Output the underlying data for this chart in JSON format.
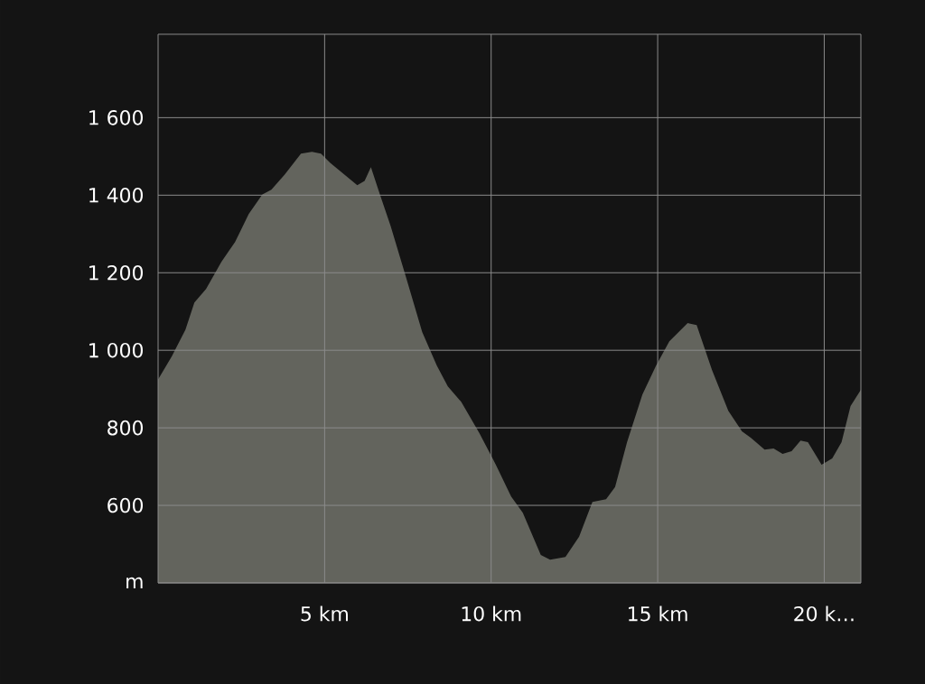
{
  "chart_data": {
    "type": "area",
    "color": "#63645d",
    "x": [
      0,
      0.41,
      0.82,
      1.09,
      1.44,
      1.9,
      2.31,
      2.72,
      3.13,
      3.4,
      3.8,
      4.29,
      4.62,
      4.89,
      5.16,
      5.98,
      6.2,
      6.39,
      6.66,
      6.98,
      7.47,
      7.93,
      8.37,
      8.7,
      9.1,
      9.65,
      10.14,
      10.6,
      10.95,
      11.49,
      11.77,
      12.23,
      12.64,
      13.04,
      13.45,
      13.72,
      14.08,
      14.54,
      14.95,
      15.35,
      15.9,
      16.17,
      16.63,
      17.12,
      17.53,
      17.8,
      18.21,
      18.48,
      18.75,
      19.02,
      19.29,
      19.51,
      19.92,
      20.24,
      20.52,
      20.79,
      21.1
    ],
    "values": [
      925,
      984,
      1053,
      1123,
      1158,
      1228,
      1279,
      1351,
      1402,
      1414,
      1453,
      1507,
      1512,
      1507,
      1484,
      1426,
      1437,
      1472,
      1402,
      1321,
      1181,
      1047,
      960,
      907,
      867,
      786,
      705,
      623,
      581,
      472,
      460,
      467,
      519,
      609,
      616,
      647,
      763,
      886,
      960,
      1023,
      1070,
      1065,
      949,
      844,
      791,
      774,
      744,
      747,
      733,
      740,
      767,
      763,
      705,
      721,
      763,
      856,
      898
    ],
    "xlim": [
      0,
      21.1
    ],
    "ylim": [
      400,
      1815
    ],
    "xticks": [
      {
        "value": 5,
        "label": "5 km"
      },
      {
        "value": 10,
        "label": "10 km"
      },
      {
        "value": 15,
        "label": "15 km"
      },
      {
        "value": 20,
        "label": "20 k…"
      }
    ],
    "yticks": [
      {
        "value": 400,
        "label": "m"
      },
      600,
      800,
      {
        "value": 1000,
        "label": "1 000"
      },
      {
        "value": 1200,
        "label": "1 200"
      },
      {
        "value": 1400,
        "label": "1 400"
      },
      {
        "value": 1600,
        "label": "1 600"
      }
    ],
    "grid": true
  }
}
